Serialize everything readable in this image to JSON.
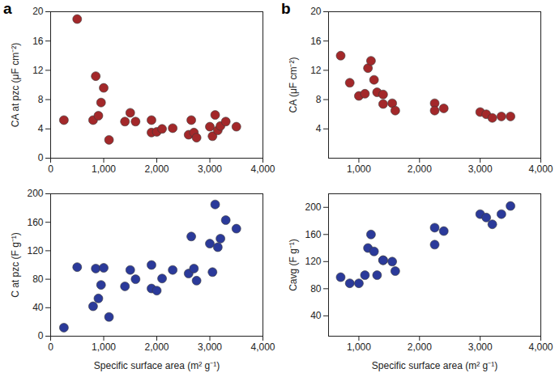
{
  "chart_data": [
    {
      "type": "scatter",
      "title": "a",
      "y_label": "CA at pzc (μF cm⁻²)",
      "color": "#a3282a",
      "marker": "circle",
      "xlim": [
        0,
        4000
      ],
      "xticks": [
        0,
        {
          "value": 1000,
          "label": "1,000"
        },
        {
          "value": 2000,
          "label": "2,000"
        },
        {
          "value": 3000,
          "label": "3,000"
        },
        {
          "value": 4000,
          "label": "4,000"
        }
      ],
      "ylim": [
        0,
        20
      ],
      "yticks": [
        0,
        4,
        8,
        12,
        16,
        20
      ],
      "x": [
        250,
        500,
        800,
        850,
        900,
        950,
        1000,
        1100,
        1400,
        1500,
        1600,
        1900,
        1900,
        2000,
        2100,
        2300,
        2600,
        2650,
        2700,
        2750,
        3000,
        3050,
        3100,
        3150,
        3200,
        3300,
        3500
      ],
      "values": [
        5.2,
        19,
        5.2,
        11.2,
        5.8,
        7.6,
        9.6,
        2.5,
        5.0,
        6.2,
        5.0,
        3.5,
        5.2,
        3.6,
        4.0,
        4.1,
        3.2,
        5.2,
        3.5,
        2.8,
        4.3,
        3.0,
        5.9,
        3.8,
        4.4,
        5.0,
        4.3
      ]
    },
    {
      "type": "scatter",
      "title": "b",
      "y_label": "CA (μF cm⁻²)",
      "color": "#a3282a",
      "marker": "circle",
      "xlim": [
        500,
        4000
      ],
      "xticks": [
        {
          "value": 1000,
          "label": "1,000"
        },
        {
          "value": 2000,
          "label": "2,000"
        },
        {
          "value": 3000,
          "label": "3,000"
        },
        {
          "value": 4000,
          "label": "4,000"
        }
      ],
      "ylim": [
        0,
        20
      ],
      "yticks": [
        4,
        8,
        12,
        16,
        20
      ],
      "x": [
        700,
        850,
        1000,
        1100,
        1150,
        1200,
        1250,
        1300,
        1400,
        1400,
        1550,
        1600,
        2250,
        2250,
        2400,
        3000,
        3100,
        3200,
        3350,
        3500
      ],
      "values": [
        14,
        10.3,
        8.5,
        8.8,
        12.3,
        13.3,
        10.7,
        9.0,
        7.4,
        8.7,
        7.5,
        6.5,
        7.5,
        6.5,
        6.8,
        6.3,
        6.0,
        5.5,
        5.7,
        5.7
      ]
    },
    {
      "type": "scatter",
      "x_label": "Specific surface area (m² g⁻¹)",
      "y_label": "C at pzc (F g⁻¹)",
      "color": "#2b3a9a",
      "marker": "circle",
      "xlim": [
        0,
        4000
      ],
      "xticks": [
        0,
        {
          "value": 1000,
          "label": "1,000"
        },
        {
          "value": 2000,
          "label": "2,000"
        },
        {
          "value": 3000,
          "label": "3,000"
        },
        {
          "value": 4000,
          "label": "4,000"
        }
      ],
      "ylim": [
        0,
        200
      ],
      "yticks": [
        0,
        40,
        80,
        120,
        160,
        200
      ],
      "x": [
        250,
        500,
        800,
        850,
        900,
        950,
        1000,
        1100,
        1400,
        1500,
        1600,
        1900,
        1900,
        2000,
        2100,
        2300,
        2600,
        2650,
        2700,
        2750,
        3000,
        3050,
        3100,
        3150,
        3200,
        3300,
        3500
      ],
      "values": [
        12,
        97,
        42,
        95,
        53,
        72,
        96,
        27,
        70,
        93,
        80,
        100,
        67,
        64,
        81,
        93,
        88,
        140,
        95,
        78,
        130,
        90,
        185,
        125,
        137,
        163,
        151
      ]
    },
    {
      "type": "scatter",
      "x_label": "Specific surface area (m² g⁻¹)",
      "y_label": "Cavg (F g⁻¹)",
      "color": "#2b3a9a",
      "marker": "circle",
      "xlim": [
        500,
        4000
      ],
      "xticks": [
        {
          "value": 1000,
          "label": "1,000"
        },
        {
          "value": 2000,
          "label": "2,000"
        },
        {
          "value": 3000,
          "label": "3,000"
        },
        {
          "value": 4000,
          "label": "4,000"
        }
      ],
      "ylim": [
        10,
        220
      ],
      "yticks": [
        40,
        80,
        120,
        160,
        200
      ],
      "x": [
        700,
        850,
        1000,
        1100,
        1150,
        1200,
        1250,
        1300,
        1400,
        1400,
        1550,
        1600,
        2250,
        2250,
        2400,
        3000,
        3100,
        3200,
        3350,
        3500
      ],
      "values": [
        97,
        88,
        88,
        100,
        140,
        160,
        135,
        100,
        122,
        122,
        120,
        106,
        145,
        170,
        165,
        190,
        185,
        175,
        190,
        202
      ]
    }
  ]
}
